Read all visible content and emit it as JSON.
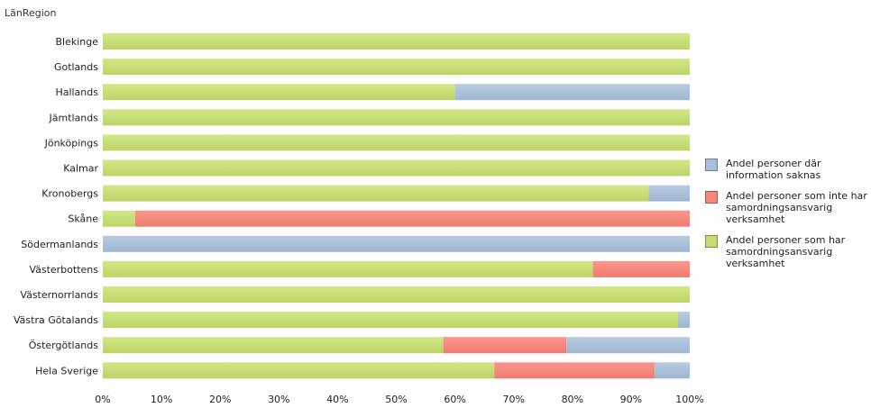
{
  "chart_data": {
    "type": "bar",
    "orientation": "horizontal",
    "stacked": "percent",
    "dimension_title": "LänRegion",
    "categories": [
      "Blekinge",
      "Gotlands",
      "Hallands",
      "Jämtlands",
      "Jönköpings",
      "Kalmar",
      "Kronobergs",
      "Skåne",
      "Södermanlands",
      "Västerbottens",
      "Västernorrlands",
      "Västra Götalands",
      "Östergötlands",
      "Hela Sverige"
    ],
    "series": [
      {
        "name": "Andel personer som har samordningsansvarig verksamhet",
        "color": "#c4dc72",
        "values": [
          100,
          100,
          60,
          100,
          100,
          100,
          93,
          5.5,
          0,
          83.5,
          100,
          98,
          58,
          66.7
        ]
      },
      {
        "name": "Andel personer som inte har samordningsansvarig verksamhet",
        "color": "#f4877c",
        "values": [
          0,
          0,
          0,
          0,
          0,
          0,
          0,
          94.5,
          0,
          16.5,
          0,
          0,
          21,
          27.3
        ]
      },
      {
        "name": "Andel personer där information saknas",
        "color": "#a9bfd8",
        "values": [
          0,
          0,
          40,
          0,
          0,
          0,
          7,
          0,
          100,
          0,
          0,
          2,
          21,
          6
        ]
      }
    ],
    "legend": [
      {
        "label": "Andel personer där information saknas",
        "color": "#a9bfd8"
      },
      {
        "label": "Andel personer som inte har samordningsansvarig verksamhet",
        "color": "#f4877c"
      },
      {
        "label": "Andel personer som har samordningsansvarig verksamhet",
        "color": "#c4dc72"
      }
    ],
    "xlim": [
      0,
      100
    ],
    "xticks": [
      "0%",
      "10%",
      "20%",
      "30%",
      "40%",
      "50%",
      "60%",
      "70%",
      "80%",
      "90%",
      "100%"
    ],
    "legend_position": "right",
    "grid": false
  }
}
